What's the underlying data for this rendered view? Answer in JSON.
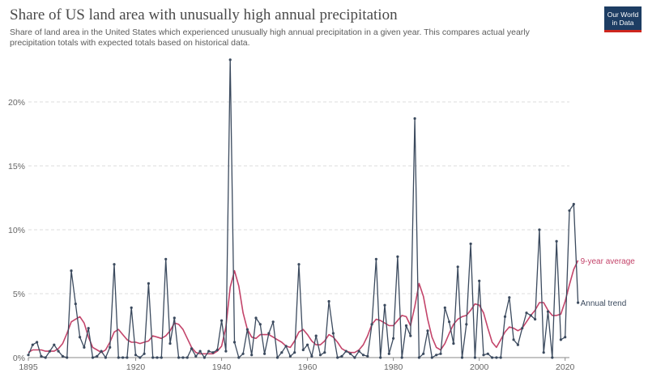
{
  "header": {
    "title": "Share of US land area with unusually high annual precipitation",
    "subtitle": "Share of land area in the United States which experienced unusually high annual precipitation in a given year. This compares actual yearly precipitation totals with expected totals based on historical data."
  },
  "logo": {
    "line1": "Our World",
    "line2": "in Data"
  },
  "chart_data": {
    "type": "line",
    "title": "Share of US land area with unusually high annual precipitation",
    "xlim": [
      1895,
      2021
    ],
    "ylim": [
      0,
      25
    ],
    "y_ticks": [
      0,
      5,
      10,
      15,
      20
    ],
    "y_tick_labels": [
      "0%",
      "5%",
      "10%",
      "15%",
      "20%"
    ],
    "x_ticks": [
      1895,
      1920,
      1940,
      1960,
      1980,
      2000,
      2020
    ],
    "x_tick_labels": [
      "1895",
      "1920",
      "1940",
      "1960",
      "1980",
      "2000",
      "2020"
    ],
    "grid": "horizontal dashed",
    "x_start": 1895,
    "series": [
      {
        "name": "Annual trend",
        "color": "#3b4a5e",
        "markers": true,
        "values": [
          0.2,
          1.0,
          1.2,
          0.1,
          0.0,
          0.5,
          1.0,
          0.5,
          0.1,
          0.0,
          6.8,
          4.2,
          1.6,
          0.8,
          2.3,
          0.0,
          0.1,
          0.5,
          0.0,
          0.8,
          7.3,
          0.0,
          0.0,
          0.0,
          3.9,
          0.2,
          0.0,
          0.3,
          5.8,
          0.0,
          0.0,
          0.0,
          7.7,
          1.1,
          3.1,
          0.0,
          0.0,
          0.0,
          0.7,
          0.1,
          0.5,
          0.0,
          0.5,
          0.4,
          0.6,
          2.9,
          0.5,
          23.3,
          1.2,
          0.0,
          0.3,
          2.2,
          0.2,
          3.1,
          2.6,
          0.3,
          1.9,
          2.8,
          0.0,
          0.4,
          0.9,
          0.1,
          0.4,
          7.3,
          0.6,
          1.0,
          0.1,
          1.7,
          0.2,
          0.4,
          4.4,
          1.9,
          0.0,
          0.1,
          0.5,
          0.3,
          0.0,
          0.5,
          0.2,
          0.1,
          2.6,
          7.7,
          0.0,
          4.1,
          0.3,
          1.5,
          7.9,
          0.0,
          2.5,
          1.7,
          18.7,
          0.0,
          0.3,
          2.1,
          0.0,
          0.2,
          0.3,
          3.9,
          2.8,
          1.1,
          7.1,
          0.0,
          2.6,
          8.9,
          0.0,
          6.0,
          0.2,
          0.3,
          0.0,
          0.0,
          0.0,
          3.2,
          4.7,
          1.4,
          1.0,
          2.3,
          3.5,
          3.3,
          3.0,
          10.0,
          0.4,
          3.6,
          0.0,
          9.1,
          1.4,
          1.6,
          11.5,
          12.0,
          4.3
        ]
      },
      {
        "name": "9-year average",
        "color": "#c3446a",
        "markers": false,
        "values": [
          0.4,
          0.6,
          0.6,
          0.6,
          0.5,
          0.5,
          0.5,
          0.7,
          1.1,
          1.9,
          2.8,
          3.0,
          3.2,
          2.7,
          1.6,
          0.8,
          0.6,
          0.4,
          0.6,
          1.2,
          2.0,
          2.2,
          1.8,
          1.4,
          1.2,
          1.2,
          1.1,
          1.2,
          1.3,
          1.7,
          1.6,
          1.5,
          1.7,
          2.1,
          2.7,
          2.6,
          2.2,
          1.5,
          0.8,
          0.4,
          0.3,
          0.3,
          0.3,
          0.3,
          0.5,
          0.9,
          2.4,
          5.5,
          6.8,
          5.6,
          3.5,
          2.2,
          1.6,
          1.5,
          1.8,
          1.8,
          1.8,
          1.6,
          1.4,
          1.2,
          0.9,
          0.8,
          1.3,
          2.0,
          2.2,
          1.8,
          1.3,
          1.0,
          1.0,
          1.3,
          1.8,
          1.6,
          1.2,
          0.7,
          0.5,
          0.4,
          0.4,
          0.6,
          1.0,
          1.7,
          2.6,
          3.0,
          2.9,
          2.7,
          2.5,
          2.5,
          2.9,
          3.3,
          3.2,
          2.5,
          4.0,
          5.8,
          4.8,
          3.0,
          1.6,
          0.8,
          0.6,
          1.1,
          1.9,
          2.6,
          3.0,
          3.2,
          3.3,
          3.7,
          4.2,
          4.1,
          3.5,
          2.3,
          1.2,
          0.8,
          1.4,
          2.0,
          2.4,
          2.3,
          2.1,
          2.3,
          2.8,
          3.3,
          3.7,
          4.3,
          4.3,
          3.7,
          3.3,
          3.3,
          3.4,
          4.4,
          5.7,
          6.9,
          7.6
        ]
      }
    ]
  }
}
